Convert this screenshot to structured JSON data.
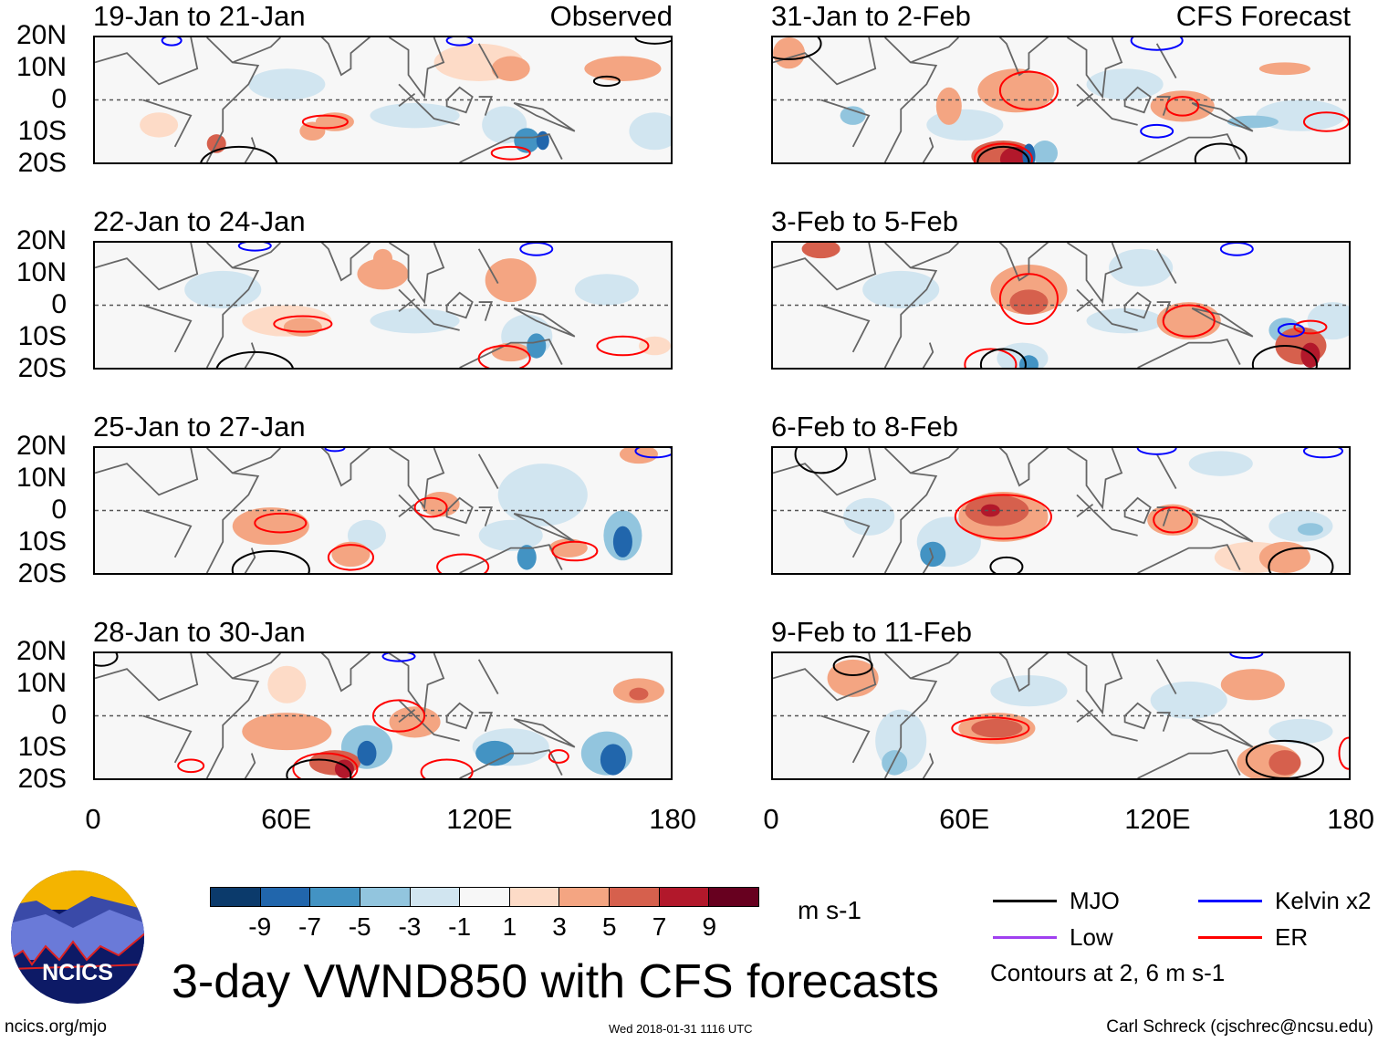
{
  "labels": {
    "observed": "Observed",
    "forecast": "CFS Forecast",
    "title": "3-day VWND850 with CFS forecasts",
    "units": "m s-1",
    "url": "ncics.org/mjo",
    "timestamp": "Wed 2018-01-31 1116 UTC",
    "author": "Carl Schreck (cjschrec@ncsu.edu)",
    "contours_note": "Contours at 2, 6 m s-1",
    "logo_text": "NCICS"
  },
  "lat_labels": [
    "20N",
    "10N",
    "0",
    "10S",
    "20S"
  ],
  "lon_labels": [
    "0",
    "60E",
    "120E",
    "180"
  ],
  "colorbar": {
    "colors": [
      "#0b3a6b",
      "#2166ac",
      "#4393c3",
      "#92c5de",
      "#d1e5f0",
      "#f7f7f7",
      "#fddbc7",
      "#f4a582",
      "#d6604d",
      "#b2182b",
      "#67001f"
    ],
    "ticks": [
      "-9",
      "-7",
      "-5",
      "-3",
      "-1",
      "1",
      "3",
      "5",
      "7",
      "9"
    ]
  },
  "legend": [
    {
      "label": "MJO",
      "color": "#000000"
    },
    {
      "label": "Kelvin x2",
      "color": "#0000ff"
    },
    {
      "label": "Low",
      "color": "#a040f0"
    },
    {
      "label": "ER",
      "color": "#ff0000"
    }
  ],
  "panels": [
    {
      "title": "19-Jan to 21-Jan",
      "blobs": [
        [
          60,
          5,
          12,
          5,
          -2
        ],
        [
          100,
          -5,
          14,
          4,
          -2
        ],
        [
          175,
          -10,
          8,
          6,
          -2
        ],
        [
          128,
          -8,
          7,
          6,
          -3
        ],
        [
          135,
          -13,
          4,
          4,
          -6
        ],
        [
          140,
          -13,
          2,
          3,
          -8
        ],
        [
          120,
          12,
          14,
          6,
          2
        ],
        [
          130,
          10,
          6,
          4,
          4
        ],
        [
          165,
          10,
          12,
          4,
          3
        ],
        [
          75,
          -7,
          6,
          3,
          3
        ],
        [
          68,
          -10,
          4,
          3,
          4
        ],
        [
          38,
          -14,
          3,
          3,
          5
        ],
        [
          20,
          -8,
          6,
          4,
          2
        ]
      ],
      "contours": [
        [
          72,
          -7,
          7,
          2,
          "er"
        ],
        [
          130,
          -17,
          6,
          2,
          "er"
        ],
        [
          45,
          -21,
          12,
          6,
          "mjo"
        ],
        [
          160,
          6,
          4,
          1.5,
          "mjo"
        ],
        [
          175,
          20,
          6,
          2,
          "mjo"
        ],
        [
          24,
          19,
          3,
          1.5,
          "kelvin"
        ],
        [
          114,
          19,
          4,
          1.5,
          "kelvin"
        ]
      ]
    },
    {
      "title": "31-Jan to 2-Feb",
      "blobs": [
        [
          60,
          -8,
          12,
          5,
          -2
        ],
        [
          110,
          5,
          12,
          5,
          -2
        ],
        [
          165,
          -5,
          14,
          5,
          -2
        ],
        [
          150,
          -7,
          8,
          2,
          -4
        ],
        [
          25,
          -5,
          4,
          3,
          -4
        ],
        [
          55,
          -2,
          4,
          6,
          3
        ],
        [
          76,
          3,
          12,
          7,
          3
        ],
        [
          128,
          -2,
          10,
          5,
          3
        ],
        [
          160,
          10,
          8,
          2,
          3
        ],
        [
          72,
          -18,
          10,
          5,
          5
        ],
        [
          76,
          -19,
          5,
          4,
          8
        ],
        [
          80,
          -18,
          2,
          4,
          -9
        ],
        [
          85,
          -17,
          4,
          4,
          -4
        ],
        [
          5,
          15,
          5,
          5,
          4
        ]
      ],
      "contours": [
        [
          80,
          3,
          9,
          6,
          "er"
        ],
        [
          128,
          -2,
          5,
          3,
          "er"
        ],
        [
          173,
          -7,
          7,
          3,
          "er"
        ],
        [
          72,
          -19,
          9,
          5,
          "er"
        ],
        [
          72,
          -20,
          8,
          5,
          "mjo"
        ],
        [
          140,
          -19,
          8,
          5,
          "mjo"
        ],
        [
          5,
          18,
          10,
          5,
          "mjo"
        ],
        [
          120,
          -10,
          5,
          2,
          "kelvin"
        ],
        [
          120,
          19,
          8,
          3,
          "kelvin"
        ]
      ]
    },
    {
      "title": "22-Jan to 24-Jan",
      "blobs": [
        [
          40,
          5,
          12,
          6,
          -2
        ],
        [
          100,
          -5,
          14,
          4,
          -2
        ],
        [
          135,
          -10,
          8,
          7,
          -3
        ],
        [
          138,
          -13,
          3,
          4,
          -7
        ],
        [
          160,
          5,
          10,
          5,
          -2
        ],
        [
          60,
          -5,
          14,
          5,
          2
        ],
        [
          65,
          -7,
          6,
          3,
          4
        ],
        [
          90,
          10,
          8,
          5,
          3
        ],
        [
          130,
          8,
          8,
          7,
          3
        ],
        [
          130,
          -15,
          6,
          3,
          4
        ],
        [
          90,
          15,
          3,
          3,
          4
        ],
        [
          175,
          -13,
          5,
          3,
          2
        ]
      ],
      "contours": [
        [
          65,
          -6,
          9,
          2.5,
          "er"
        ],
        [
          128,
          -17,
          8,
          4,
          "er"
        ],
        [
          165,
          -13,
          8,
          3,
          "er"
        ],
        [
          50,
          -21,
          12,
          6,
          "mjo"
        ],
        [
          50,
          19,
          5,
          1.5,
          "kelvin"
        ],
        [
          138,
          18,
          5,
          2,
          "kelvin"
        ]
      ]
    },
    {
      "title": "3-Feb to 5-Feb",
      "blobs": [
        [
          40,
          5,
          12,
          6,
          -2
        ],
        [
          115,
          12,
          10,
          6,
          -2
        ],
        [
          110,
          -5,
          12,
          4,
          -2
        ],
        [
          78,
          -17,
          8,
          5,
          -3
        ],
        [
          80,
          -19,
          3,
          3,
          -7
        ],
        [
          175,
          -5,
          8,
          6,
          -3
        ],
        [
          160,
          -8,
          5,
          4,
          -5
        ],
        [
          80,
          5,
          12,
          8,
          3
        ],
        [
          80,
          1,
          6,
          4,
          5
        ],
        [
          15,
          18,
          6,
          3,
          5
        ],
        [
          130,
          -5,
          10,
          6,
          3
        ],
        [
          165,
          -13,
          8,
          6,
          5
        ],
        [
          168,
          -16,
          3,
          4,
          7
        ]
      ],
      "contours": [
        [
          80,
          2,
          9,
          8,
          "er"
        ],
        [
          130,
          -5,
          8,
          5,
          "er"
        ],
        [
          168,
          -7,
          5,
          2,
          "er"
        ],
        [
          68,
          -19,
          8,
          5,
          "er"
        ],
        [
          72,
          -19,
          7,
          5,
          "mjo"
        ],
        [
          160,
          -19,
          10,
          6,
          "mjo"
        ],
        [
          162,
          -8,
          4,
          2,
          "kelvin"
        ],
        [
          145,
          18,
          5,
          2,
          "kelvin"
        ]
      ]
    },
    {
      "title": "25-Jan to 27-Jan",
      "blobs": [
        [
          140,
          5,
          14,
          10,
          -3
        ],
        [
          130,
          -8,
          10,
          5,
          -3
        ],
        [
          165,
          -8,
          6,
          8,
          -5
        ],
        [
          165,
          -10,
          3,
          5,
          -8
        ],
        [
          85,
          -8,
          6,
          5,
          -3
        ],
        [
          135,
          -15,
          3,
          4,
          -7
        ],
        [
          55,
          -5,
          12,
          6,
          3
        ],
        [
          60,
          -4,
          5,
          3,
          4
        ],
        [
          80,
          -14,
          6,
          4,
          3
        ],
        [
          108,
          2,
          6,
          4,
          3
        ],
        [
          148,
          -12,
          6,
          3,
          4
        ],
        [
          170,
          18,
          6,
          3,
          3
        ]
      ],
      "contours": [
        [
          58,
          -4,
          8,
          3,
          "er"
        ],
        [
          80,
          -15,
          7,
          4,
          "er"
        ],
        [
          105,
          1,
          5,
          3,
          "er"
        ],
        [
          150,
          -13,
          7,
          3,
          "er"
        ],
        [
          115,
          -18,
          8,
          4,
          "er"
        ],
        [
          55,
          -19,
          12,
          6,
          "mjo"
        ],
        [
          175,
          19,
          6,
          2,
          "kelvin"
        ],
        [
          75,
          20,
          3,
          1,
          "kelvin"
        ]
      ]
    },
    {
      "title": "6-Feb to 8-Feb",
      "blobs": [
        [
          55,
          -10,
          10,
          8,
          -3
        ],
        [
          50,
          -14,
          4,
          4,
          -6
        ],
        [
          30,
          -2,
          8,
          6,
          -2
        ],
        [
          165,
          -5,
          10,
          5,
          -2
        ],
        [
          168,
          -6,
          4,
          2,
          -4
        ],
        [
          150,
          -15,
          12,
          5,
          2
        ],
        [
          72,
          -2,
          14,
          8,
          3
        ],
        [
          70,
          0,
          10,
          5,
          5
        ],
        [
          68,
          0,
          3,
          2,
          8
        ],
        [
          125,
          -3,
          8,
          5,
          4
        ],
        [
          160,
          -15,
          8,
          5,
          4
        ],
        [
          140,
          15,
          10,
          4,
          -2
        ]
      ],
      "contours": [
        [
          72,
          -2,
          15,
          7,
          "er"
        ],
        [
          125,
          -3,
          6,
          4,
          "er"
        ],
        [
          73,
          -18,
          5,
          3,
          "mjo"
        ],
        [
          165,
          -18,
          10,
          6,
          "mjo"
        ],
        [
          15,
          18,
          8,
          6,
          "mjo"
        ],
        [
          120,
          20,
          6,
          2,
          "kelvin"
        ],
        [
          172,
          19,
          6,
          2,
          "kelvin"
        ]
      ]
    },
    {
      "title": "28-Jan to 30-Jan",
      "blobs": [
        [
          85,
          -10,
          8,
          7,
          -5
        ],
        [
          85,
          -12,
          3,
          4,
          -8
        ],
        [
          130,
          -10,
          12,
          6,
          -3
        ],
        [
          125,
          -12,
          6,
          4,
          -6
        ],
        [
          160,
          -12,
          8,
          7,
          -5
        ],
        [
          162,
          -14,
          4,
          5,
          -8
        ],
        [
          60,
          -5,
          14,
          6,
          3
        ],
        [
          75,
          -15,
          8,
          4,
          5
        ],
        [
          78,
          -17,
          3,
          3,
          8
        ],
        [
          100,
          -2,
          8,
          5,
          3
        ],
        [
          170,
          8,
          8,
          4,
          3
        ],
        [
          170,
          7,
          3,
          2,
          5
        ],
        [
          60,
          10,
          6,
          6,
          2
        ]
      ],
      "contours": [
        [
          95,
          0,
          8,
          5,
          "er"
        ],
        [
          110,
          -18,
          8,
          4,
          "er"
        ],
        [
          145,
          -13,
          3,
          2,
          "er"
        ],
        [
          30,
          -16,
          4,
          2,
          "er"
        ],
        [
          72,
          -17,
          10,
          5,
          "er"
        ],
        [
          70,
          -19,
          10,
          5,
          "mjo"
        ],
        [
          2,
          19,
          5,
          3,
          "mjo"
        ],
        [
          95,
          19,
          5,
          1.5,
          "kelvin"
        ]
      ]
    },
    {
      "title": "9-Feb to 11-Feb",
      "blobs": [
        [
          40,
          -8,
          8,
          10,
          -2
        ],
        [
          38,
          -15,
          4,
          4,
          -5
        ],
        [
          80,
          8,
          12,
          5,
          -2
        ],
        [
          130,
          5,
          12,
          6,
          -2
        ],
        [
          165,
          -5,
          10,
          4,
          -2
        ],
        [
          25,
          12,
          8,
          6,
          3
        ],
        [
          70,
          -4,
          12,
          5,
          3
        ],
        [
          70,
          -4,
          8,
          3,
          5
        ],
        [
          155,
          -15,
          10,
          6,
          3
        ],
        [
          160,
          -15,
          5,
          4,
          5
        ],
        [
          150,
          10,
          10,
          5,
          3
        ]
      ],
      "contours": [
        [
          68,
          -4,
          12,
          3.5,
          "er"
        ],
        [
          180,
          -12,
          3,
          5,
          "er"
        ],
        [
          160,
          -14,
          12,
          6,
          "mjo"
        ],
        [
          25,
          16,
          6,
          3,
          "mjo"
        ],
        [
          148,
          20,
          5,
          1.5,
          "kelvin"
        ]
      ]
    }
  ]
}
